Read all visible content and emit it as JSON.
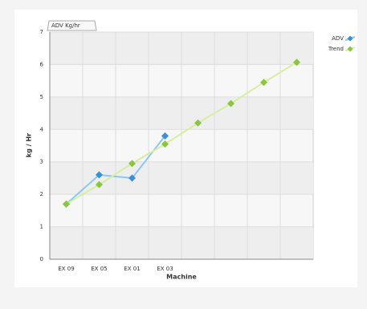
{
  "chart_data": {
    "type": "line",
    "title": "ADV Kg/hr",
    "x_label": "Machine",
    "y_label": "kg / Hr",
    "categories": [
      "EX 09",
      "EX 05",
      "EX 01",
      "EX 03",
      null,
      null,
      null,
      null
    ],
    "series": [
      {
        "name": "ADV",
        "color": "#3a8fd8",
        "line_color": "#8cc8f0",
        "values": [
          1.7,
          2.6,
          2.5,
          3.8,
          null,
          null,
          null,
          null
        ]
      },
      {
        "name": "Trend",
        "color": "#8cc63f",
        "line_color": "#d6eea0",
        "values": [
          1.7,
          2.3,
          2.95,
          3.55,
          4.2,
          4.8,
          5.45,
          6.07
        ]
      }
    ],
    "ylim": [
      0,
      7
    ],
    "yticks": [
      0,
      1,
      2,
      3,
      4,
      5,
      6,
      7
    ],
    "grid": true,
    "legend": "top-right"
  }
}
